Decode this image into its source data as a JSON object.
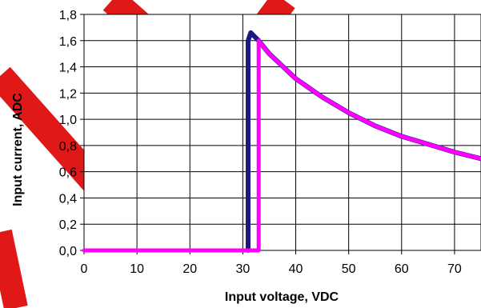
{
  "chart_data": {
    "type": "line",
    "title": "",
    "xlabel": "Input voltage, VDC",
    "ylabel": "Input current, ADC",
    "xlim": [
      0,
      75
    ],
    "ylim": [
      0,
      1.8
    ],
    "grid": true,
    "x_ticks": [
      0,
      10,
      20,
      30,
      40,
      50,
      60,
      70
    ],
    "y_ticks": [
      0,
      0.2,
      0.4,
      0.6,
      0.8,
      1.0,
      1.2,
      1.4,
      1.6,
      1.8
    ],
    "x_tick_labels": [
      "0",
      "10",
      "20",
      "30",
      "40",
      "50",
      "60",
      "70"
    ],
    "y_tick_labels": [
      "0,0",
      "0,2",
      "0,4",
      "0,6",
      "0,8",
      "1,0",
      "1,2",
      "1,4",
      "1,6",
      "1,8"
    ],
    "series": [
      {
        "color": "#1a1a80",
        "x": [
          31,
          31,
          31.5,
          32,
          33,
          35,
          40,
          45,
          50,
          55,
          60,
          65,
          70,
          75
        ],
        "y": [
          0,
          1.6,
          1.66,
          1.64,
          1.6,
          1.5,
          1.31,
          1.17,
          1.05,
          0.95,
          0.87,
          0.81,
          0.75,
          0.7
        ]
      },
      {
        "color": "#ff00ff",
        "x": [
          0,
          33,
          33,
          35,
          40,
          45,
          50,
          55,
          60,
          65,
          70,
          75
        ],
        "y": [
          0,
          0,
          1.6,
          1.5,
          1.31,
          1.17,
          1.05,
          0.95,
          0.87,
          0.81,
          0.75,
          0.7
        ]
      }
    ],
    "watermark_color": "#e01818"
  }
}
